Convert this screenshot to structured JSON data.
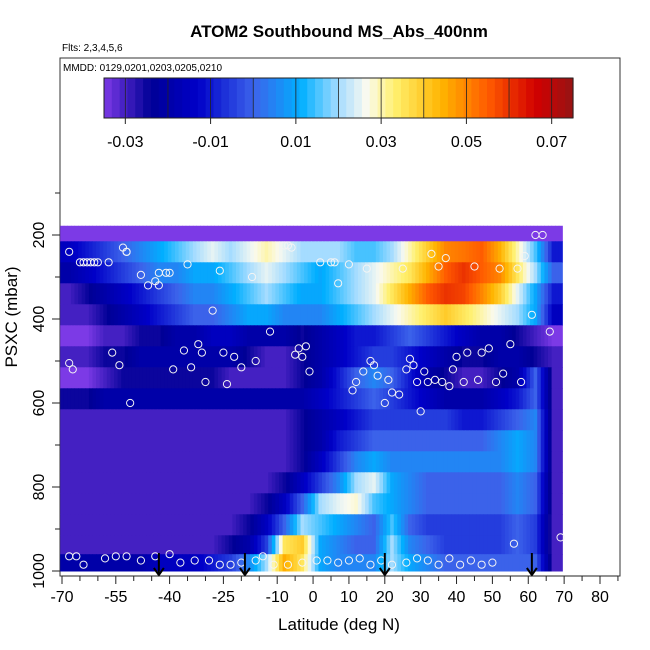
{
  "chart_data": {
    "type": "heatmap",
    "title": "ATOM2 Southbound MS_Abs_400nm",
    "flights_label": "Flts: 2,3,4,5,6",
    "dates_label": "MMDD: 0129,0201,0203,0205,0210",
    "xlabel": "Latitude (deg N)",
    "ylabel": "PSXC (mbar)",
    "xlim": [
      -70,
      85
    ],
    "ylim": [
      1000,
      100
    ],
    "x_ticks": [
      -70,
      -55,
      -40,
      -25,
      -10,
      0,
      10,
      20,
      30,
      40,
      50,
      60,
      70,
      80
    ],
    "y_ticks": [
      200,
      400,
      600,
      800,
      1000
    ],
    "colorbar": {
      "min": -0.035,
      "max": 0.075,
      "ticks": [
        -0.03,
        -0.01,
        0.01,
        0.03,
        0.05,
        0.07
      ],
      "tick_labels": [
        "-0.03",
        "-0.01",
        "0.01",
        "0.03",
        "0.05",
        "0.07"
      ]
    },
    "arrow_latitudes": [
      -43,
      -19,
      20,
      61
    ],
    "latitude_bins": [
      -68,
      -63,
      -58,
      -53,
      -48,
      -43,
      -38,
      -33,
      -28,
      -23,
      -18,
      -13,
      -8,
      -3,
      2,
      7,
      12,
      17,
      22,
      27,
      32,
      37,
      42,
      47,
      52,
      57,
      62,
      67
    ],
    "pressure_bins": [
      190,
      240,
      290,
      340,
      390,
      440,
      490,
      540,
      590,
      640,
      690,
      740,
      790,
      840,
      890,
      940,
      980
    ],
    "values": [
      [
        -0.035,
        -0.035,
        -0.035,
        -0.035,
        -0.035,
        -0.035,
        -0.035,
        -0.035,
        -0.035,
        -0.035,
        -0.035,
        -0.035,
        -0.035,
        -0.035,
        -0.035,
        -0.035,
        -0.035,
        -0.035,
        -0.035,
        -0.035,
        -0.035,
        -0.035,
        -0.035,
        -0.035,
        -0.035,
        -0.035,
        -0.035,
        -0.035
      ],
      [
        -0.015,
        -0.01,
        -0.005,
        0.0,
        0.005,
        0.01,
        0.015,
        0.02,
        0.025,
        0.02,
        0.025,
        0.03,
        0.025,
        0.02,
        0.02,
        0.02,
        0.015,
        0.015,
        0.02,
        0.03,
        0.04,
        0.05,
        0.052,
        0.055,
        0.045,
        0.03,
        0.015,
        -0.01
      ],
      [
        -0.02,
        -0.015,
        -0.01,
        -0.005,
        0.0,
        0.005,
        0.005,
        0.01,
        0.01,
        0.015,
        0.02,
        0.025,
        0.02,
        0.015,
        0.01,
        0.015,
        0.02,
        0.025,
        0.03,
        0.035,
        0.045,
        0.055,
        0.06,
        0.055,
        0.05,
        0.035,
        0.02,
        0.0
      ],
      [
        -0.03,
        -0.025,
        -0.02,
        -0.015,
        -0.01,
        -0.005,
        0.0,
        0.005,
        0.005,
        0.01,
        0.015,
        0.02,
        0.015,
        0.01,
        0.01,
        0.015,
        0.02,
        0.025,
        0.035,
        0.045,
        0.055,
        0.06,
        0.058,
        0.05,
        0.04,
        0.025,
        0.01,
        -0.01
      ],
      [
        -0.03,
        -0.03,
        -0.025,
        -0.02,
        -0.015,
        -0.01,
        -0.005,
        0.0,
        0.0,
        0.005,
        0.01,
        0.01,
        0.005,
        0.005,
        0.005,
        0.01,
        0.015,
        0.02,
        0.025,
        0.03,
        0.035,
        0.04,
        0.035,
        0.03,
        0.025,
        0.02,
        0.01,
        -0.015
      ],
      [
        -0.035,
        -0.035,
        -0.03,
        -0.03,
        -0.025,
        -0.025,
        -0.02,
        -0.02,
        -0.015,
        -0.015,
        -0.02,
        -0.02,
        -0.02,
        -0.025,
        -0.02,
        -0.015,
        -0.01,
        -0.01,
        -0.005,
        0.0,
        -0.005,
        -0.01,
        -0.015,
        -0.02,
        -0.02,
        -0.025,
        -0.03,
        -0.035
      ],
      [
        -0.03,
        -0.03,
        -0.025,
        -0.025,
        -0.02,
        -0.02,
        -0.02,
        -0.02,
        -0.02,
        -0.02,
        -0.025,
        -0.03,
        -0.03,
        -0.025,
        -0.02,
        -0.015,
        -0.01,
        -0.005,
        -0.005,
        -0.01,
        -0.015,
        -0.02,
        -0.025,
        -0.025,
        -0.02,
        -0.02,
        -0.025,
        -0.03
      ],
      [
        -0.035,
        -0.035,
        -0.03,
        -0.025,
        -0.025,
        -0.025,
        -0.025,
        -0.025,
        -0.025,
        -0.03,
        -0.03,
        -0.03,
        -0.03,
        -0.025,
        -0.02,
        -0.01,
        0.0,
        0.005,
        0.0,
        -0.01,
        -0.02,
        -0.025,
        -0.03,
        -0.03,
        -0.025,
        -0.02,
        0.0,
        -0.03
      ],
      [
        -0.025,
        -0.025,
        -0.02,
        -0.02,
        -0.02,
        -0.02,
        -0.02,
        -0.02,
        -0.02,
        -0.02,
        -0.02,
        -0.02,
        -0.02,
        -0.02,
        -0.015,
        -0.01,
        -0.005,
        0.0,
        -0.005,
        -0.01,
        -0.015,
        -0.02,
        -0.02,
        -0.02,
        -0.015,
        -0.01,
        0.0,
        -0.03
      ],
      [
        -0.03,
        -0.03,
        -0.03,
        -0.03,
        -0.03,
        -0.03,
        -0.03,
        -0.03,
        -0.03,
        -0.03,
        -0.03,
        -0.03,
        -0.03,
        -0.025,
        -0.02,
        -0.015,
        -0.01,
        -0.005,
        -0.005,
        -0.005,
        -0.005,
        -0.005,
        -0.01,
        -0.01,
        -0.005,
        0.0,
        0.005,
        -0.03
      ],
      [
        -0.03,
        -0.03,
        -0.03,
        -0.03,
        -0.03,
        -0.03,
        -0.03,
        -0.03,
        -0.03,
        -0.03,
        -0.03,
        -0.03,
        -0.03,
        -0.025,
        -0.02,
        -0.01,
        -0.005,
        0.0,
        0.0,
        0.0,
        0.0,
        0.0,
        0.0,
        0.0,
        0.005,
        0.01,
        0.005,
        -0.03
      ],
      [
        -0.03,
        -0.03,
        -0.03,
        -0.03,
        -0.03,
        -0.03,
        -0.03,
        -0.03,
        -0.03,
        -0.03,
        -0.03,
        -0.03,
        -0.03,
        -0.025,
        -0.015,
        -0.005,
        0.005,
        0.01,
        0.005,
        0.005,
        0.005,
        0.005,
        0.005,
        0.005,
        0.005,
        0.01,
        0.005,
        -0.03
      ],
      [
        -0.03,
        -0.03,
        -0.03,
        -0.03,
        -0.03,
        -0.03,
        -0.03,
        -0.03,
        -0.03,
        -0.03,
        -0.03,
        -0.03,
        -0.025,
        -0.015,
        -0.005,
        0.005,
        0.02,
        0.025,
        0.01,
        0.005,
        0.0,
        0.0,
        0.0,
        0.0,
        0.0,
        0.005,
        0.0,
        -0.03
      ],
      [
        -0.03,
        -0.03,
        -0.03,
        -0.03,
        -0.03,
        -0.03,
        -0.03,
        -0.03,
        -0.03,
        -0.03,
        -0.03,
        -0.025,
        -0.015,
        0.0,
        0.02,
        0.025,
        0.028,
        0.015,
        0.01,
        0.005,
        0.0,
        0.0,
        0.0,
        0.0,
        0.0,
        0.005,
        0.0,
        -0.03
      ],
      [
        -0.03,
        -0.03,
        -0.03,
        -0.03,
        -0.03,
        -0.03,
        -0.03,
        -0.03,
        -0.03,
        -0.03,
        -0.025,
        -0.015,
        0.0,
        0.02,
        0.015,
        0.01,
        0.005,
        0.0,
        0.015,
        0.0,
        -0.005,
        -0.005,
        -0.005,
        -0.005,
        -0.005,
        0.0,
        -0.005,
        -0.03
      ],
      [
        -0.03,
        -0.03,
        -0.03,
        -0.03,
        -0.03,
        -0.03,
        -0.03,
        -0.03,
        -0.03,
        -0.025,
        -0.02,
        -0.005,
        0.035,
        0.04,
        0.01,
        0.005,
        0.0,
        0.0,
        0.02,
        0.005,
        0.0,
        -0.005,
        -0.005,
        -0.005,
        -0.005,
        0.0,
        -0.005,
        -0.03
      ],
      [
        -0.02,
        -0.02,
        -0.02,
        -0.02,
        -0.02,
        -0.015,
        -0.015,
        -0.015,
        -0.01,
        -0.005,
        0.005,
        0.02,
        0.045,
        0.035,
        0.01,
        0.005,
        0.005,
        0.005,
        0.02,
        0.01,
        0.005,
        0.0,
        0.0,
        0.0,
        0.0,
        0.0,
        0.0,
        -0.03
      ]
    ],
    "points": [
      [
        -68,
        240
      ],
      [
        -68,
        505
      ],
      [
        -67,
        520
      ],
      [
        -66,
        965
      ],
      [
        -65,
        265
      ],
      [
        -64,
        265
      ],
      [
        -63,
        265
      ],
      [
        -62,
        265
      ],
      [
        -61,
        265
      ],
      [
        -60,
        265
      ],
      [
        -57,
        265
      ],
      [
        -56,
        480
      ],
      [
        -54,
        510
      ],
      [
        -53,
        230
      ],
      [
        -52,
        240
      ],
      [
        -51,
        600
      ],
      [
        -52,
        240
      ],
      [
        -48,
        295
      ],
      [
        -46,
        320
      ],
      [
        -44,
        310
      ],
      [
        -43,
        320
      ],
      [
        -43,
        290
      ],
      [
        -41,
        290
      ],
      [
        -40,
        290
      ],
      [
        -39,
        520
      ],
      [
        -35,
        270
      ],
      [
        -36,
        475
      ],
      [
        -34,
        515
      ],
      [
        -32,
        460
      ],
      [
        -31,
        480
      ],
      [
        -30,
        550
      ],
      [
        -28,
        380
      ],
      [
        -26,
        285
      ],
      [
        -25,
        480
      ],
      [
        -24,
        555
      ],
      [
        -22,
        490
      ],
      [
        -20,
        515
      ],
      [
        -17,
        300
      ],
      [
        -16,
        500
      ],
      [
        -12,
        430
      ],
      [
        -8,
        225
      ],
      [
        -7,
        225
      ],
      [
        -6,
        230
      ],
      [
        -5,
        485
      ],
      [
        -4,
        470
      ],
      [
        -3,
        490
      ],
      [
        -2,
        465
      ],
      [
        -1,
        525
      ],
      [
        2,
        265
      ],
      [
        5,
        265
      ],
      [
        6,
        265
      ],
      [
        7,
        315
      ],
      [
        10,
        270
      ],
      [
        11,
        570
      ],
      [
        12,
        550
      ],
      [
        14,
        525
      ],
      [
        15,
        280
      ],
      [
        16,
        500
      ],
      [
        17,
        510
      ],
      [
        18,
        535
      ],
      [
        20,
        600
      ],
      [
        21,
        545
      ],
      [
        22,
        575
      ],
      [
        24,
        580
      ],
      [
        25,
        280
      ],
      [
        26,
        520
      ],
      [
        27,
        495
      ],
      [
        28,
        510
      ],
      [
        29,
        550
      ],
      [
        30,
        620
      ],
      [
        31,
        525
      ],
      [
        32,
        550
      ],
      [
        33,
        245
      ],
      [
        34,
        545
      ],
      [
        35,
        275
      ],
      [
        36,
        550
      ],
      [
        37,
        255
      ],
      [
        38,
        560
      ],
      [
        39,
        520
      ],
      [
        40,
        490
      ],
      [
        42,
        550
      ],
      [
        43,
        480
      ],
      [
        45,
        275
      ],
      [
        46,
        545
      ],
      [
        47,
        480
      ],
      [
        49,
        470
      ],
      [
        51,
        550
      ],
      [
        52,
        280
      ],
      [
        53,
        530
      ],
      [
        55,
        460
      ],
      [
        57,
        280
      ],
      [
        58,
        550
      ],
      [
        59,
        250
      ],
      [
        61,
        390
      ],
      [
        62,
        200
      ],
      [
        64,
        200
      ],
      [
        66,
        430
      ],
      [
        69,
        920
      ],
      [
        -68,
        965
      ],
      [
        -64,
        985
      ],
      [
        -58,
        970
      ],
      [
        -55,
        965
      ],
      [
        -52,
        965
      ],
      [
        -48,
        975
      ],
      [
        -44,
        965
      ],
      [
        -40,
        960
      ],
      [
        -37,
        980
      ],
      [
        -33,
        975
      ],
      [
        -29,
        975
      ],
      [
        -26,
        985
      ],
      [
        -23,
        985
      ],
      [
        -20,
        980
      ],
      [
        -16,
        975
      ],
      [
        -14,
        965
      ],
      [
        -11,
        985
      ],
      [
        -7,
        985
      ],
      [
        -3,
        980
      ],
      [
        1,
        975
      ],
      [
        4,
        975
      ],
      [
        7,
        980
      ],
      [
        10,
        975
      ],
      [
        13,
        970
      ],
      [
        16,
        985
      ],
      [
        19,
        975
      ],
      [
        22,
        985
      ],
      [
        26,
        980
      ],
      [
        29,
        970
      ],
      [
        32,
        975
      ],
      [
        35,
        985
      ],
      [
        38,
        970
      ],
      [
        41,
        985
      ],
      [
        44,
        975
      ],
      [
        47,
        985
      ],
      [
        50,
        980
      ],
      [
        56,
        935
      ]
    ]
  }
}
